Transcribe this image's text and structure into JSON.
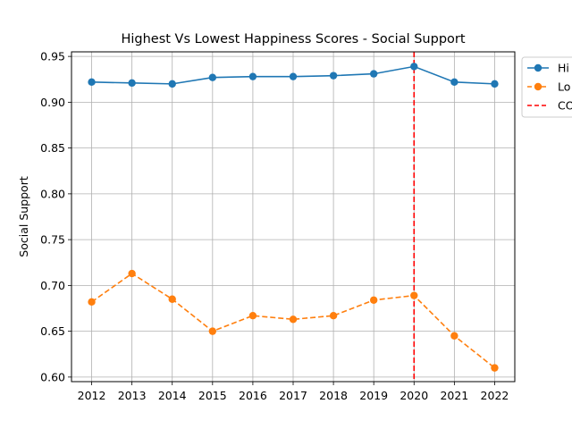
{
  "chart_data": {
    "type": "line",
    "title": "Highest Vs Lowest Happiness Scores - Social Support",
    "xlabel": "",
    "ylabel": "Social Support",
    "x": [
      2012,
      2013,
      2014,
      2015,
      2016,
      2017,
      2018,
      2019,
      2020,
      2021,
      2022
    ],
    "x_tick_labels": [
      "2012",
      "2013",
      "2014",
      "2015",
      "2016",
      "2017",
      "2018",
      "2019",
      "2020",
      "2021",
      "2022"
    ],
    "ylim": [
      0.595,
      0.955
    ],
    "y_ticks": [
      0.6,
      0.65,
      0.7,
      0.75,
      0.8,
      0.85,
      0.9,
      0.95
    ],
    "y_tick_labels": [
      "0.60",
      "0.65",
      "0.70",
      "0.75",
      "0.80",
      "0.85",
      "0.90",
      "0.95"
    ],
    "grid": true,
    "legend_position": "top-right outside plot area (clipped)",
    "series": [
      {
        "name": "Hi",
        "color": "#1f77b4",
        "line_style": "solid",
        "marker": "circle",
        "values": [
          0.922,
          0.921,
          0.92,
          0.927,
          0.928,
          0.928,
          0.929,
          0.931,
          0.939,
          0.922,
          0.92
        ]
      },
      {
        "name": "Lo",
        "color": "#ff7f0e",
        "line_style": "dashed",
        "marker": "circle",
        "values": [
          0.682,
          0.713,
          0.685,
          0.65,
          0.667,
          0.663,
          0.667,
          0.684,
          0.689,
          0.645,
          0.61
        ]
      }
    ],
    "reference_lines": [
      {
        "orientation": "vertical",
        "x": 2020,
        "label": "CO",
        "color": "#ff0000",
        "line_style": "dashed"
      }
    ]
  }
}
